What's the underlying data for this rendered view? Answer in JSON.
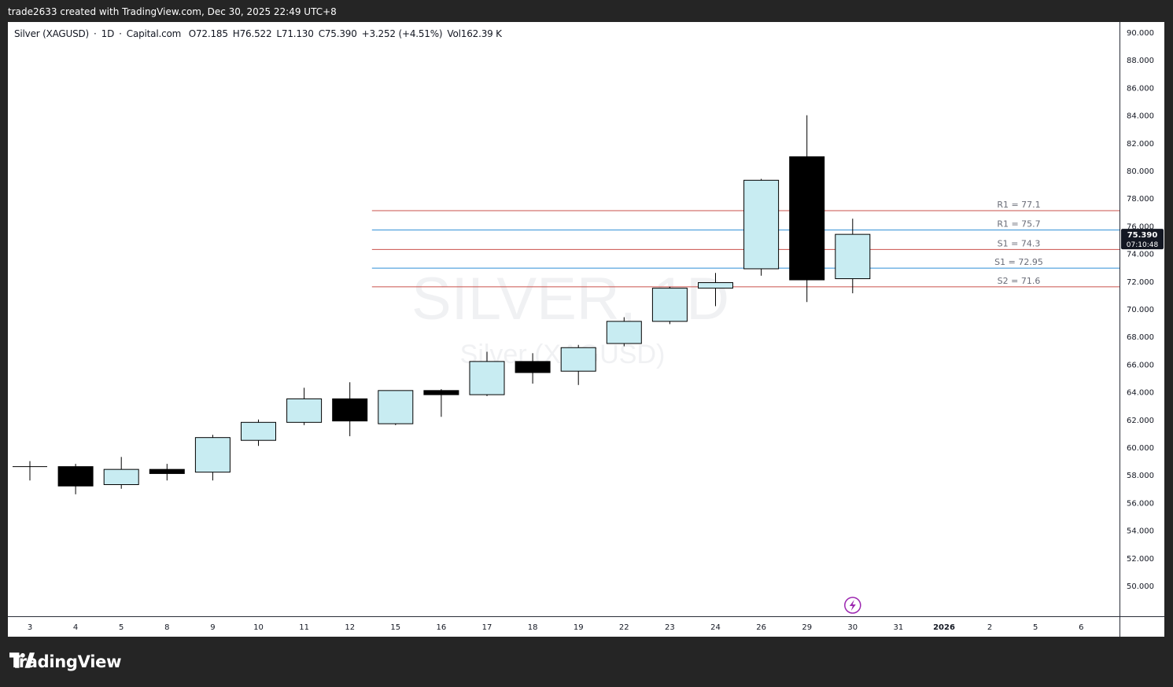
{
  "caption": "trade2633 created with TradingView.com, Dec 30, 2025 22:49 UTC+8",
  "header": {
    "symbol": "Silver (XAGUSD)",
    "sep1": "·",
    "interval": "1D",
    "sep2": "·",
    "exchange": "Capital.com",
    "open": "O72.185",
    "high": "H76.522",
    "low": "L71.130",
    "close": "C75.390",
    "change": "+3.252 (+4.51%)",
    "volume": "Vol162.39 K"
  },
  "watermark": {
    "main": "SILVER, 1D",
    "sub": "Silver (XAGUSD)"
  },
  "price_label": {
    "price": "75.390",
    "countdown": "07:10:48"
  },
  "brand": "TradingView",
  "colors": {
    "up_fill": "#c8ecf2",
    "down_fill": "#000000",
    "resistance_line": "#c9504b",
    "support_line": "#2f8fd6",
    "price_badge": "#131722",
    "background": "#ffffff",
    "frame": "#252525"
  },
  "icons": {
    "event": "lightning-icon",
    "logo": "tradingview-logo-icon"
  },
  "chart_data": {
    "type": "candlestick",
    "title": "Silver (XAGUSD) · 1D · Capital.com",
    "ylim": [
      49,
      91
    ],
    "y_ticks": [
      "90.000",
      "88.000",
      "86.000",
      "84.000",
      "82.000",
      "80.000",
      "78.000",
      "76.000",
      "74.000",
      "72.000",
      "70.000",
      "68.000",
      "66.000",
      "64.000",
      "62.000",
      "60.000",
      "58.000",
      "56.000",
      "54.000",
      "52.000",
      "50.000"
    ],
    "x_ticks": [
      "3",
      "4",
      "5",
      "8",
      "9",
      "10",
      "11",
      "12",
      "15",
      "16",
      "17",
      "18",
      "19",
      "22",
      "23",
      "24",
      "26",
      "29",
      "30",
      "31",
      "2026",
      "2",
      "5",
      "6"
    ],
    "candles": [
      {
        "date": "3",
        "open": 58.6,
        "high": 59.0,
        "low": 57.6,
        "close": 58.6
      },
      {
        "date": "4",
        "open": 58.6,
        "high": 58.8,
        "low": 56.6,
        "close": 57.2
      },
      {
        "date": "5",
        "open": 57.3,
        "high": 59.3,
        "low": 57.0,
        "close": 58.4
      },
      {
        "date": "8",
        "open": 58.4,
        "high": 58.8,
        "low": 57.6,
        "close": 58.1
      },
      {
        "date": "9",
        "open": 58.2,
        "high": 60.9,
        "low": 57.6,
        "close": 60.7
      },
      {
        "date": "10",
        "open": 60.5,
        "high": 62.0,
        "low": 60.1,
        "close": 61.8
      },
      {
        "date": "11",
        "open": 61.8,
        "high": 64.3,
        "low": 61.6,
        "close": 63.5
      },
      {
        "date": "12",
        "open": 63.5,
        "high": 64.7,
        "low": 60.8,
        "close": 61.9
      },
      {
        "date": "15",
        "open": 61.7,
        "high": 64.1,
        "low": 61.6,
        "close": 64.1
      },
      {
        "date": "16",
        "open": 64.1,
        "high": 64.2,
        "low": 62.2,
        "close": 63.8
      },
      {
        "date": "17",
        "open": 63.8,
        "high": 66.9,
        "low": 63.7,
        "close": 66.2
      },
      {
        "date": "18",
        "open": 66.2,
        "high": 66.8,
        "low": 64.6,
        "close": 65.4
      },
      {
        "date": "19",
        "open": 65.5,
        "high": 67.4,
        "low": 64.5,
        "close": 67.2
      },
      {
        "date": "22",
        "open": 67.5,
        "high": 69.4,
        "low": 67.3,
        "close": 69.1
      },
      {
        "date": "23",
        "open": 69.1,
        "high": 71.6,
        "low": 68.9,
        "close": 71.5
      },
      {
        "date": "24",
        "open": 71.5,
        "high": 72.6,
        "low": 70.2,
        "close": 71.9
      },
      {
        "date": "26",
        "open": 72.9,
        "high": 79.4,
        "low": 72.4,
        "close": 79.3
      },
      {
        "date": "29",
        "open": 81.0,
        "high": 84.0,
        "low": 70.5,
        "close": 72.1
      },
      {
        "date": "30",
        "open": 72.185,
        "high": 76.522,
        "low": 71.13,
        "close": 75.39
      }
    ],
    "levels": [
      {
        "label": "R1 = 77.1",
        "value": 77.1,
        "kind": "resistance"
      },
      {
        "label": "R1 = 75.7",
        "value": 75.7,
        "kind": "support"
      },
      {
        "label": "S1 = 74.3",
        "value": 74.3,
        "kind": "resistance"
      },
      {
        "label": "S1 = 72.95",
        "value": 72.95,
        "kind": "support"
      },
      {
        "label": "S2 = 71.6",
        "value": 71.6,
        "kind": "resistance"
      }
    ],
    "levels_start_date": "15",
    "event_marker_date": "30",
    "grid": false
  }
}
